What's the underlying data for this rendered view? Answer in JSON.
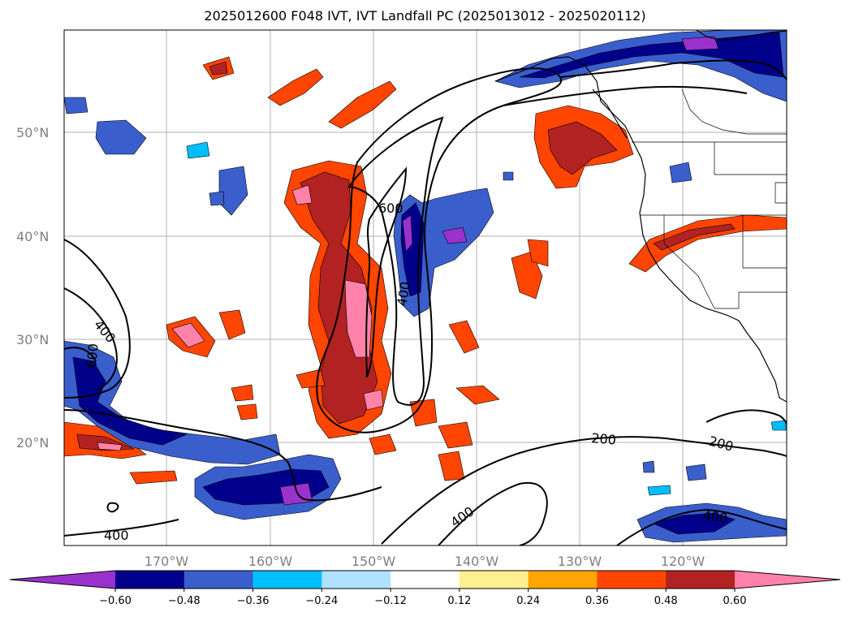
{
  "title": "2025012600 F048 IVT, IVT Landfall PC (2025013012 - 2025020112)",
  "lat_labels": [
    "50°N",
    "40°N",
    "30°N",
    "20°N"
  ],
  "lon_labels": [
    "170°W",
    "160°W",
    "150°W",
    "140°W",
    "130°W",
    "120°W"
  ],
  "contour_labels": [
    "600",
    "400",
    "400",
    "600",
    "200",
    "200",
    "400",
    "400",
    "400"
  ],
  "colorbar": {
    "colors": [
      "#9932cc",
      "#00008b",
      "#3a5fcd",
      "#00bfff",
      "#b0e2ff",
      "#ffffff",
      "#fff08f",
      "#ffa500",
      "#ff4500",
      "#b22222",
      "#ff82ab"
    ],
    "tick_labels": [
      "−0.60",
      "−0.48",
      "−0.36",
      "−0.24",
      "−0.12",
      "0.12",
      "0.24",
      "0.36",
      "0.48",
      "0.60"
    ]
  },
  "colors": {
    "gridline": "#b0b0b0",
    "coastline": "#000000",
    "contour": "#000000"
  }
}
